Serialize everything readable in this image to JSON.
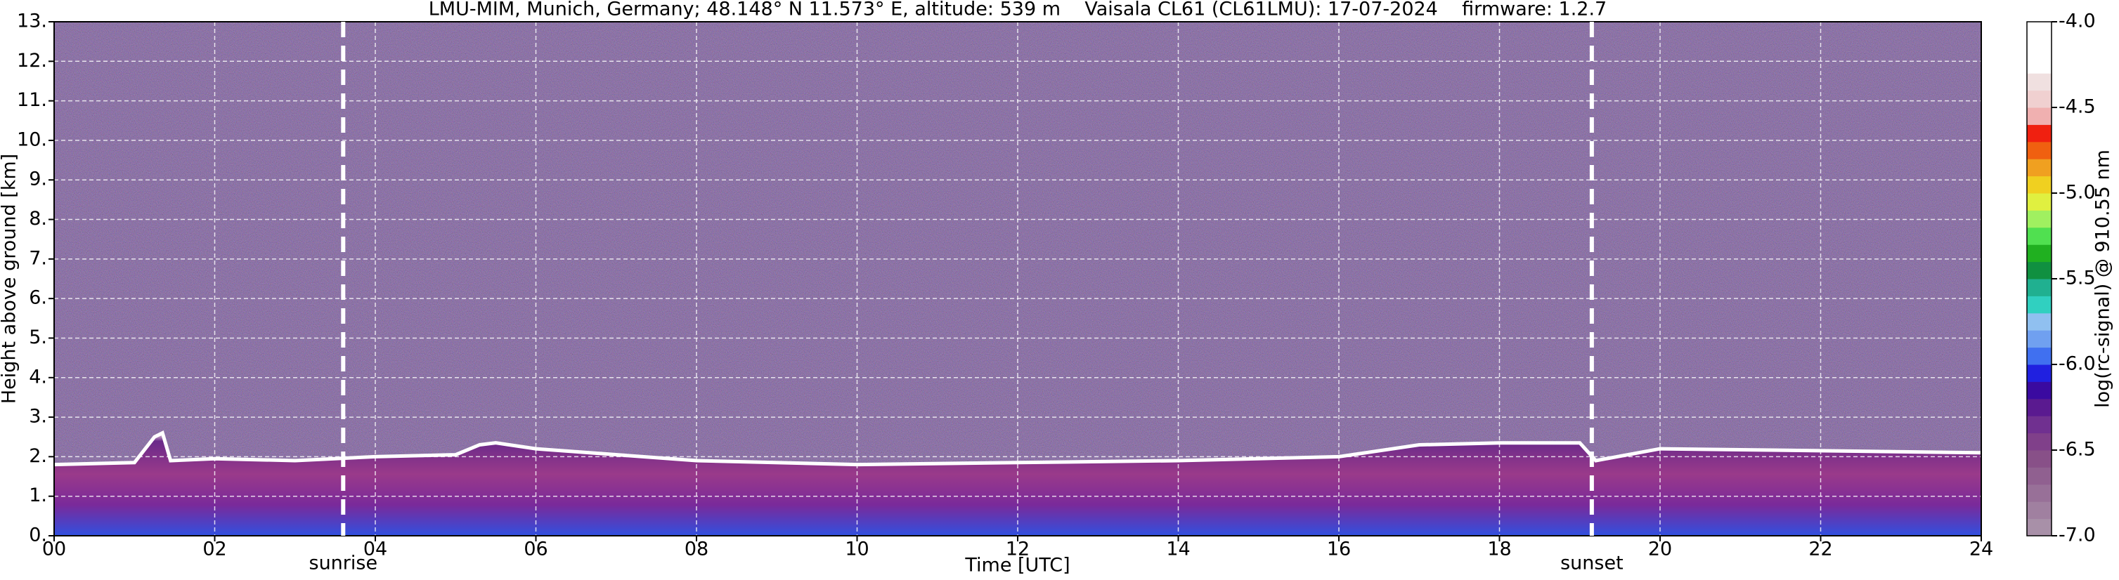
{
  "chart_data": {
    "type": "ceilometer",
    "title": "LMU-MIM, Munich, Germany; 48.148° N 11.573° E, altitude: 539 m    Vaisala CL61 (CL61LMU): 17-07-2024    firmware: 1.2.7",
    "x_label": "Time [UTC]",
    "y_label": "Height above ground [km]",
    "colorbar_label": "log(rc-signal) @ 910.55 nm",
    "xlim": [
      0,
      24
    ],
    "xticks": [
      {
        "value": 0,
        "label": "00"
      },
      {
        "value": 2,
        "label": "02"
      },
      {
        "value": 4,
        "label": "04"
      },
      {
        "value": 6,
        "label": "06"
      },
      {
        "value": 8,
        "label": "08"
      },
      10,
      12,
      14,
      16,
      18,
      20,
      22,
      24
    ],
    "ylim": [
      0,
      13
    ],
    "yticks": [
      {
        "value": 0,
        "label": "0."
      },
      {
        "value": 1,
        "label": "1."
      },
      {
        "value": 2,
        "label": "2."
      },
      {
        "value": 3,
        "label": "3."
      },
      {
        "value": 4,
        "label": "4."
      },
      {
        "value": 5,
        "label": "5."
      },
      {
        "value": 6,
        "label": "6."
      },
      {
        "value": 7,
        "label": "7."
      },
      {
        "value": 8,
        "label": "8."
      },
      {
        "value": 9,
        "label": "9."
      },
      {
        "value": 10,
        "label": "10."
      },
      {
        "value": 11,
        "label": "11."
      },
      {
        "value": 12,
        "label": "12."
      },
      {
        "value": 13,
        "label": "13."
      }
    ],
    "grid": true,
    "clim": [
      -7,
      -4
    ],
    "cticks": [
      {
        "value": -7,
        "label": "-7.0"
      },
      -6.5,
      {
        "value": -6,
        "label": "-6.0"
      },
      -5.5,
      {
        "value": -5,
        "label": "-5.0"
      },
      -4.5,
      {
        "value": -4,
        "label": "-4.0"
      }
    ],
    "colorbar_colors": [
      "#a890a8",
      "#a080a0",
      "#987098",
      "#906090",
      "#885088",
      "#80408a",
      "#703090",
      "#5a1a90",
      "#3a0aa0",
      "#2020e0",
      "#4070f0",
      "#70a0f0",
      "#90c0f0",
      "#30d0c0",
      "#20b090",
      "#109040",
      "#20b020",
      "#50e050",
      "#a0f060",
      "#e0f040",
      "#f0d020",
      "#f0a020",
      "#f06010",
      "#f02010",
      "#f0b0b0",
      "#f0d0d0",
      "#f0e0e0",
      "#ffffff",
      "#ffffff",
      "#ffffff"
    ],
    "events": [
      {
        "label": "sunrise",
        "x": 3.6
      },
      {
        "label": "sunset",
        "x": 19.15
      }
    ],
    "x": [
      0,
      1,
      1.25,
      1.35,
      1.45,
      2,
      3,
      4,
      5,
      5.3,
      5.5,
      6,
      8,
      10,
      12,
      14,
      16,
      17,
      18,
      19,
      19.2,
      20,
      22,
      24
    ],
    "values": [
      1.8,
      1.85,
      2.5,
      2.6,
      1.9,
      1.95,
      1.9,
      2.0,
      2.05,
      2.3,
      2.35,
      2.2,
      1.9,
      1.8,
      1.85,
      1.9,
      2.0,
      2.3,
      2.35,
      2.35,
      1.9,
      2.2,
      2.15,
      2.1
    ],
    "color": "#ffffff"
  }
}
